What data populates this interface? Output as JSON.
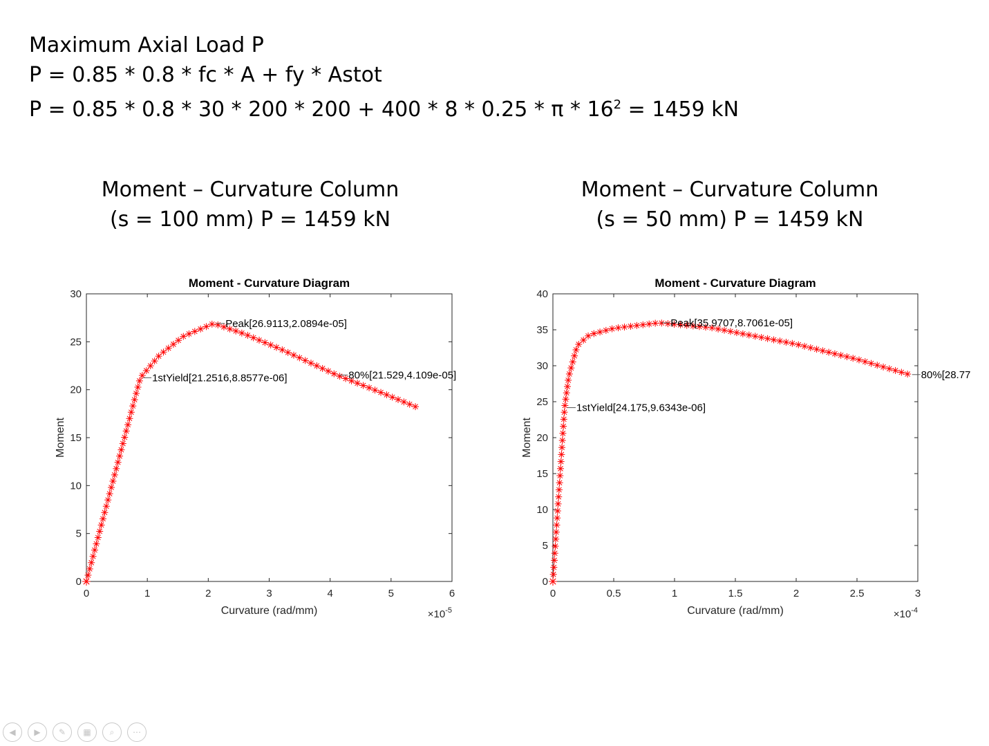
{
  "heading": {
    "line1": "Maximum Axial Load P",
    "line2": "P = 0.85 * 0.8 * fc * A + fy * Astot",
    "line3_main": "P = 0.85 * 0.8 * 30 * 200 * 200 + 400 * 8 * 0.25 * π * 16",
    "line3_sup": "2",
    "line3_end": " = 1459 kN"
  },
  "subtitles": [
    {
      "line1": "Moment – Curvature Column",
      "line2": "(s = 100 mm) P = 1459 kN"
    },
    {
      "line1": "Moment – Curvature Column",
      "line2": "(s = 50 mm) P = 1459 kN"
    }
  ],
  "colors": {
    "series": "#ff0000",
    "axis": "#262626",
    "text": "#000000"
  },
  "chart_data": [
    {
      "type": "scatter",
      "title": "Moment - Curvature Diagram",
      "xlabel": "Curvature (rad/mm)",
      "ylabel": "Moment",
      "x_exponent_label": "×10",
      "x_exponent": "-5",
      "xlim": [
        0,
        6
      ],
      "ylim": [
        0,
        30
      ],
      "xticks": [
        0,
        1,
        2,
        3,
        4,
        5,
        6
      ],
      "yticks": [
        0,
        5,
        10,
        15,
        20,
        25,
        30
      ],
      "x_scale": 1e-05,
      "marker": "asterisk",
      "grid": false,
      "curve": [
        [
          0,
          0
        ],
        [
          0.8858,
          21.2516
        ],
        [
          1.2,
          23.6
        ],
        [
          1.6,
          25.6
        ],
        [
          2.0894,
          26.9113
        ],
        [
          2.6,
          25.8
        ],
        [
          3.2,
          24.2
        ],
        [
          4.109,
          21.529
        ],
        [
          4.8,
          19.8
        ],
        [
          5.45,
          18.1
        ]
      ],
      "annotations": [
        {
          "label": "Peak[26.9113,2.0894e-05]",
          "x": 2.0894,
          "y": 26.9113
        },
        {
          "label": "1stYield[21.2516,8.8577e-06]",
          "x": 0.8858,
          "y": 21.2516
        },
        {
          "label": "80%[21.529,4.109e-05]",
          "x": 4.109,
          "y": 21.529
        }
      ]
    },
    {
      "type": "scatter",
      "title": "Moment - Curvature Diagram",
      "xlabel": "Curvature (rad/mm)",
      "ylabel": "Moment",
      "x_exponent_label": "×10",
      "x_exponent": "-4",
      "xlim": [
        0,
        3
      ],
      "ylim": [
        0,
        40
      ],
      "xticks": [
        0,
        0.5,
        1,
        1.5,
        2,
        2.5,
        3
      ],
      "yticks": [
        0,
        5,
        10,
        15,
        20,
        25,
        30,
        35,
        40
      ],
      "x_scale": 0.0001,
      "marker": "asterisk",
      "grid": false,
      "curve": [
        [
          0,
          0
        ],
        [
          0.0963,
          24.175
        ],
        [
          0.13,
          28.5
        ],
        [
          0.2,
          32.8
        ],
        [
          0.3,
          34.3
        ],
        [
          0.5,
          35.2
        ],
        [
          0.87061,
          35.9707
        ],
        [
          1.3,
          35.3
        ],
        [
          2.0,
          33.0
        ],
        [
          2.5,
          30.9
        ],
        [
          2.93,
          28.77
        ]
      ],
      "annotations": [
        {
          "label": "Peak[35.9707,8.7061e-05]",
          "x": 0.87061,
          "y": 35.9707
        },
        {
          "label": "1stYield[24.175,9.6343e-06]",
          "x": 0.0963,
          "y": 24.175
        },
        {
          "label": "80%[28.77",
          "x": 2.93,
          "y": 28.77
        }
      ]
    }
  ],
  "nav": [
    "previous",
    "next",
    "pen",
    "slides",
    "zoom",
    "more"
  ]
}
